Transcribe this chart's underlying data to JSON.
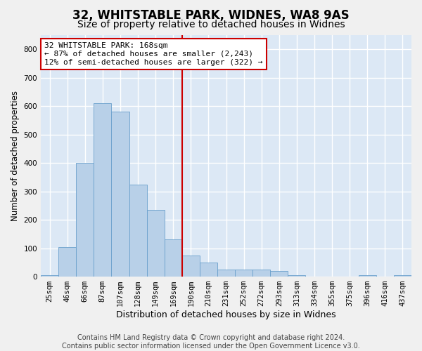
{
  "title": "32, WHITSTABLE PARK, WIDNES, WA8 9AS",
  "subtitle": "Size of property relative to detached houses in Widnes",
  "xlabel": "Distribution of detached houses by size in Widnes",
  "ylabel": "Number of detached properties",
  "bar_labels": [
    "25sqm",
    "46sqm",
    "66sqm",
    "87sqm",
    "107sqm",
    "128sqm",
    "149sqm",
    "169sqm",
    "190sqm",
    "210sqm",
    "231sqm",
    "252sqm",
    "272sqm",
    "293sqm",
    "313sqm",
    "334sqm",
    "355sqm",
    "375sqm",
    "396sqm",
    "416sqm",
    "437sqm"
  ],
  "bar_values": [
    5,
    105,
    400,
    610,
    580,
    325,
    235,
    130,
    75,
    50,
    25,
    25,
    25,
    20,
    5,
    0,
    0,
    0,
    5,
    0,
    5
  ],
  "bar_color": "#b8d0e8",
  "bar_edgecolor": "#6aa0cc",
  "vline_x": 7.5,
  "vline_color": "#cc0000",
  "annotation_text": "32 WHITSTABLE PARK: 168sqm\n← 87% of detached houses are smaller (2,243)\n12% of semi-detached houses are larger (322) →",
  "annotation_box_color": "#ffffff",
  "annotation_box_edgecolor": "#cc0000",
  "ylim": [
    0,
    850
  ],
  "yticks": [
    0,
    100,
    200,
    300,
    400,
    500,
    600,
    700,
    800
  ],
  "background_color": "#dce8f5",
  "grid_color": "#ffffff",
  "footer_line1": "Contains HM Land Registry data © Crown copyright and database right 2024.",
  "footer_line2": "Contains public sector information licensed under the Open Government Licence v3.0.",
  "title_fontsize": 12,
  "subtitle_fontsize": 10,
  "xlabel_fontsize": 9,
  "ylabel_fontsize": 8.5,
  "tick_fontsize": 7.5,
  "footer_fontsize": 7
}
